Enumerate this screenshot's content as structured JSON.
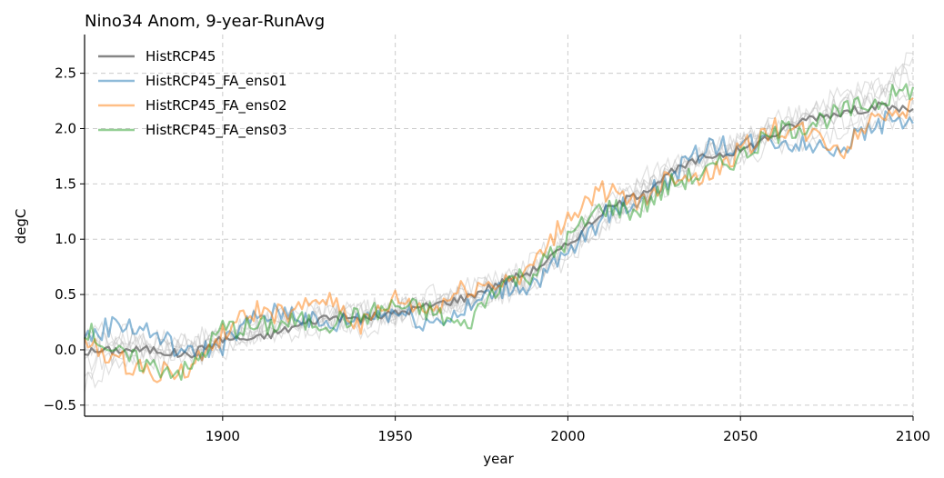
{
  "chart_data": {
    "type": "line",
    "title": "Nino34 Anom, 9-year-RunAvg",
    "xlabel": "year",
    "ylabel": "degC",
    "xlim": [
      1860,
      2100
    ],
    "ylim": [
      -0.6,
      2.85
    ],
    "xticks": [
      1900,
      1950,
      2000,
      2050,
      2100
    ],
    "xtick_labels": [
      "1900",
      "1950",
      "2000",
      "2050",
      "2100"
    ],
    "yticks": [
      -0.5,
      0.0,
      0.5,
      1.0,
      1.5,
      2.0,
      2.5
    ],
    "ytick_labels": [
      "−0.5",
      "0.0",
      "0.5",
      "1.0",
      "1.5",
      "2.0",
      "2.5"
    ],
    "grid": true,
    "legend_position": "top-left",
    "series": [
      {
        "name": "HistRCP45",
        "color": "#808080",
        "x": [
          1860,
          1870,
          1880,
          1890,
          1900,
          1910,
          1920,
          1930,
          1940,
          1950,
          1960,
          1970,
          1980,
          1990,
          2000,
          2010,
          2020,
          2030,
          2040,
          2050,
          2060,
          2070,
          2080,
          2090,
          2100
        ],
        "values": [
          -0.02,
          0.0,
          0.0,
          -0.05,
          0.1,
          0.1,
          0.2,
          0.3,
          0.28,
          0.33,
          0.4,
          0.47,
          0.6,
          0.72,
          0.95,
          1.25,
          1.4,
          1.6,
          1.75,
          1.8,
          1.95,
          2.1,
          2.15,
          2.2,
          2.17
        ]
      },
      {
        "name": "HistRCP45_FA_ens01",
        "color": "#1f77b4",
        "x": [
          1860,
          1870,
          1880,
          1890,
          1900,
          1910,
          1920,
          1930,
          1940,
          1950,
          1960,
          1970,
          1980,
          1990,
          2000,
          2010,
          2020,
          2030,
          2040,
          2050,
          2060,
          2070,
          2080,
          2090,
          2100
        ],
        "values": [
          0.1,
          0.25,
          0.15,
          -0.05,
          0.05,
          0.3,
          0.35,
          0.2,
          0.3,
          0.35,
          0.25,
          0.35,
          0.55,
          0.6,
          0.85,
          1.2,
          1.35,
          1.55,
          1.85,
          1.85,
          1.9,
          1.85,
          1.85,
          2.05,
          2.1
        ]
      },
      {
        "name": "HistRCP45_FA_ens02",
        "color": "#ff7f0e",
        "x": [
          1860,
          1870,
          1880,
          1890,
          1900,
          1910,
          1920,
          1930,
          1940,
          1950,
          1960,
          1970,
          1980,
          1990,
          2000,
          2010,
          2020,
          2030,
          2040,
          2050,
          2060,
          2070,
          2080,
          2090,
          2100
        ],
        "values": [
          0.05,
          -0.1,
          -0.2,
          -0.2,
          0.15,
          0.35,
          0.3,
          0.5,
          0.2,
          0.45,
          0.35,
          0.55,
          0.6,
          0.75,
          1.2,
          1.45,
          1.3,
          1.6,
          1.55,
          1.8,
          2.0,
          1.95,
          1.8,
          2.15,
          2.2
        ]
      },
      {
        "name": "HistRCP45_FA_ens03",
        "color": "#2ca02c",
        "x": [
          1860,
          1870,
          1880,
          1890,
          1900,
          1910,
          1920,
          1930,
          1940,
          1950,
          1960,
          1970,
          1980,
          1990,
          2000,
          2010,
          2020,
          2030,
          2040,
          2050,
          2060,
          2070,
          2080,
          2090,
          2100
        ],
        "values": [
          0.2,
          -0.05,
          -0.15,
          -0.2,
          0.2,
          0.2,
          0.25,
          0.25,
          0.3,
          0.4,
          0.35,
          0.2,
          0.6,
          0.7,
          1.0,
          1.3,
          1.25,
          1.5,
          1.6,
          1.75,
          1.95,
          2.05,
          2.15,
          2.25,
          2.37
        ]
      }
    ],
    "background_members": [
      {
        "values": [
          0.05,
          0.05,
          0.1,
          0.1,
          0.1,
          0.15,
          0.25,
          0.3,
          0.35,
          0.35,
          0.45,
          0.5,
          0.6,
          0.65,
          1.0,
          1.3,
          1.45,
          1.6,
          1.8,
          1.85,
          2.0,
          2.15,
          2.2,
          2.3,
          2.4
        ]
      },
      {
        "values": [
          -0.3,
          -0.1,
          0.0,
          0.05,
          0.05,
          0.2,
          0.15,
          0.25,
          0.3,
          0.35,
          0.35,
          0.4,
          0.55,
          0.75,
          0.9,
          1.15,
          1.35,
          1.65,
          1.7,
          1.8,
          1.9,
          2.05,
          2.25,
          2.35,
          2.6
        ]
      },
      {
        "values": [
          0.0,
          0.15,
          0.05,
          -0.05,
          0.15,
          0.1,
          0.3,
          0.35,
          0.2,
          0.3,
          0.45,
          0.45,
          0.5,
          0.7,
          0.95,
          1.25,
          1.4,
          1.55,
          1.75,
          1.9,
          1.95,
          2.0,
          2.1,
          2.1,
          2.2
        ]
      },
      {
        "values": [
          -0.1,
          -0.05,
          -0.1,
          0.0,
          0.1,
          0.25,
          0.2,
          0.25,
          0.35,
          0.4,
          0.35,
          0.55,
          0.6,
          0.8,
          1.05,
          1.2,
          1.5,
          1.7,
          1.8,
          1.85,
          2.05,
          2.2,
          2.3,
          2.4,
          2.5
        ]
      },
      {
        "values": [
          0.1,
          0.0,
          -0.05,
          0.05,
          0.0,
          0.15,
          0.25,
          0.4,
          0.3,
          0.25,
          0.4,
          0.5,
          0.65,
          0.7,
          0.85,
          1.1,
          1.35,
          1.55,
          1.65,
          1.75,
          1.85,
          1.9,
          2.0,
          2.1,
          2.05
        ]
      },
      {
        "values": [
          0.2,
          0.1,
          0.05,
          0.0,
          0.2,
          0.2,
          0.35,
          0.3,
          0.25,
          0.35,
          0.5,
          0.45,
          0.55,
          0.65,
          0.9,
          1.2,
          1.3,
          1.5,
          1.7,
          1.8,
          1.95,
          2.1,
          2.2,
          2.25,
          2.7
        ]
      },
      {
        "values": [
          -0.2,
          0.0,
          0.05,
          -0.1,
          0.05,
          0.3,
          0.2,
          0.2,
          0.4,
          0.3,
          0.3,
          0.4,
          0.5,
          0.6,
          0.85,
          1.3,
          1.45,
          1.6,
          1.75,
          1.9,
          2.0,
          2.05,
          2.15,
          2.2,
          2.3
        ]
      }
    ]
  }
}
